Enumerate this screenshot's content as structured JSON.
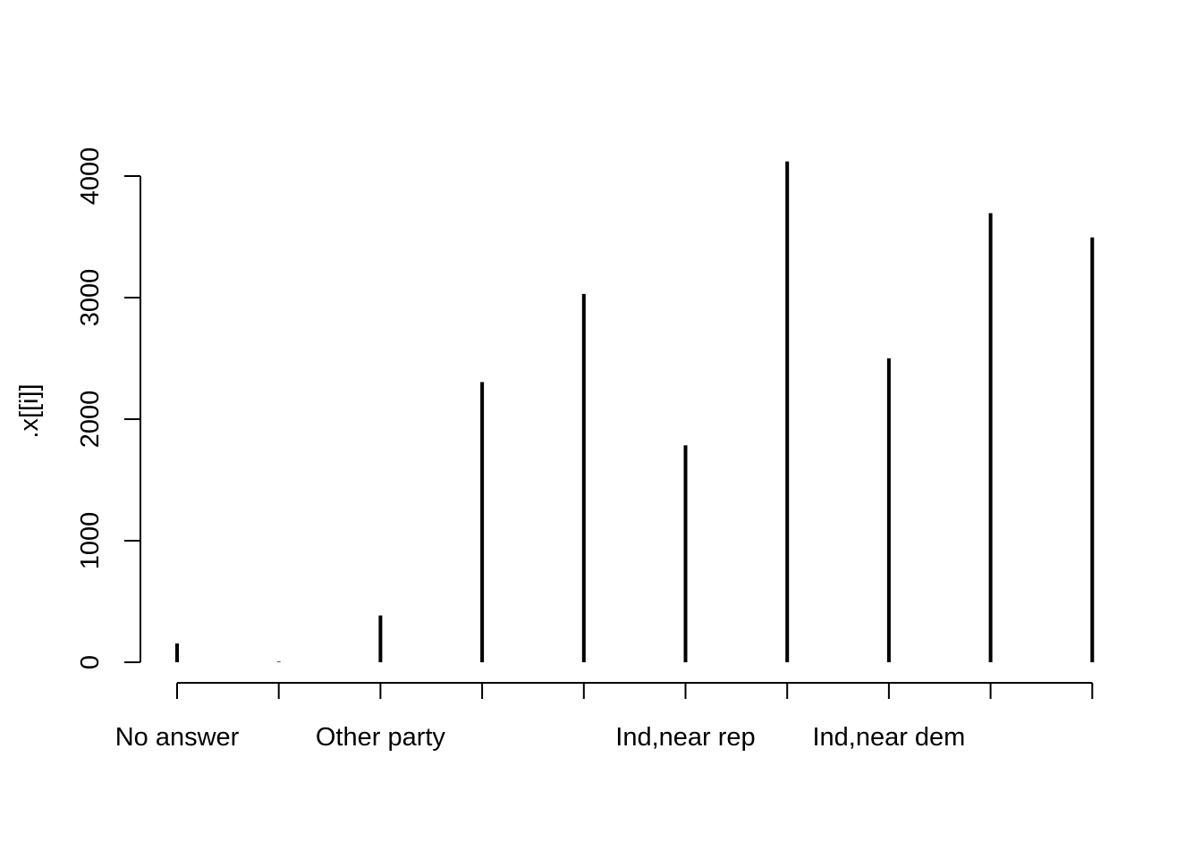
{
  "chart_data": {
    "type": "bar",
    "style": "histogram-spikes",
    "categories": [
      "No answer",
      "",
      "Other party",
      "",
      "",
      "Ind,near rep",
      "",
      "Ind,near dem",
      "",
      ""
    ],
    "values": [
      155,
      5,
      385,
      2305,
      3030,
      1785,
      4120,
      2500,
      3695,
      3495
    ],
    "ylabel": ".x[[i]]",
    "xlabel": "",
    "title": "",
    "y_ticks": [
      0,
      1000,
      2000,
      3000,
      4000
    ],
    "ylim": [
      0,
      4120
    ],
    "grid": false,
    "legend": "none",
    "bar_color": "#000000"
  }
}
